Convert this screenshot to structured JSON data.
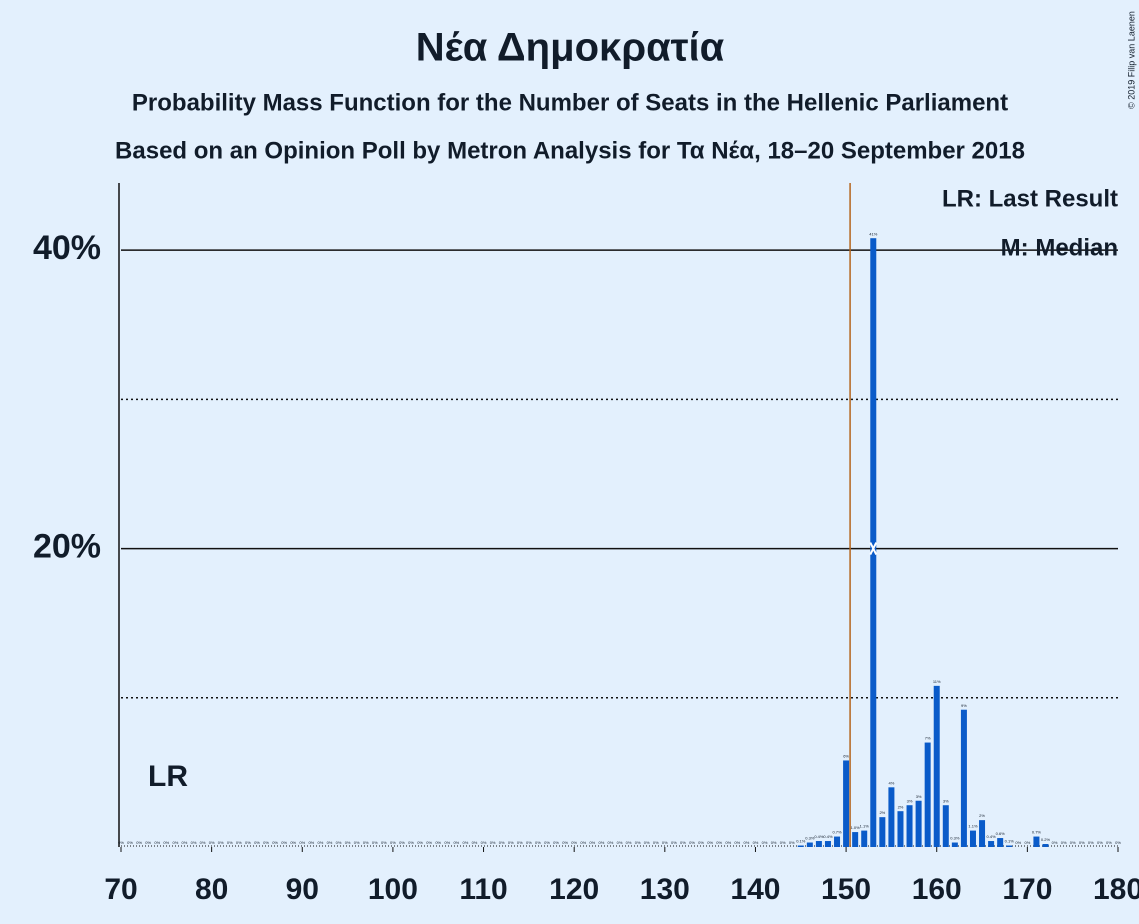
{
  "chart_data": {
    "type": "bar",
    "title": "Νέα Δημοκρατία",
    "subtitle": "Probability Mass Function for the Number of Seats in the Hellenic Parliament",
    "subtitle2": "Based on an Opinion Poll by Metron Analysis for Τα Νέα, 18–20 September 2018",
    "copyright": "© 2019 Filip van Laenen",
    "legend": [
      "LR: Last Result",
      "M: Median"
    ],
    "lr_label": "LR",
    "last_result": 150,
    "median": 153,
    "color": "#0a5bc9",
    "lr_color": "#b5651d",
    "x": [
      70,
      71,
      72,
      73,
      74,
      75,
      76,
      77,
      78,
      79,
      80,
      81,
      82,
      83,
      84,
      85,
      86,
      87,
      88,
      89,
      90,
      91,
      92,
      93,
      94,
      95,
      96,
      97,
      98,
      99,
      100,
      101,
      102,
      103,
      104,
      105,
      106,
      107,
      108,
      109,
      110,
      111,
      112,
      113,
      114,
      115,
      116,
      117,
      118,
      119,
      120,
      121,
      122,
      123,
      124,
      125,
      126,
      127,
      128,
      129,
      130,
      131,
      132,
      133,
      134,
      135,
      136,
      137,
      138,
      139,
      140,
      141,
      142,
      143,
      144,
      145,
      146,
      147,
      148,
      149,
      150,
      151,
      152,
      153,
      154,
      155,
      156,
      157,
      158,
      159,
      160,
      161,
      162,
      163,
      164,
      165,
      166,
      167,
      168,
      169,
      170,
      171,
      172,
      173,
      174,
      175,
      176,
      177,
      178,
      179,
      180
    ],
    "values": [
      0,
      0,
      0,
      0,
      0,
      0,
      0,
      0,
      0,
      0,
      0,
      0,
      0,
      0,
      0,
      0,
      0,
      0,
      0,
      0,
      0,
      0,
      0,
      0,
      0,
      0,
      0,
      0,
      0,
      0,
      0,
      0,
      0,
      0,
      0,
      0,
      0,
      0,
      0,
      0,
      0,
      0,
      0,
      0,
      0,
      0,
      0,
      0,
      0,
      0,
      0,
      0,
      0,
      0,
      0,
      0,
      0,
      0,
      0,
      0,
      0,
      0,
      0,
      0,
      0,
      0,
      0,
      0,
      0,
      0,
      0,
      0,
      0,
      0,
      0,
      0.1,
      0.3,
      0.4,
      0.4,
      0.7,
      5.8,
      1.0,
      1.1,
      40.8,
      2.0,
      4.0,
      2.4,
      2.8,
      3.1,
      7.0,
      10.8,
      2.8,
      0.3,
      9.2,
      1.1,
      1.8,
      0.4,
      0.6,
      0.1,
      0,
      0,
      0.7,
      0.2,
      0,
      0,
      0,
      0,
      0,
      0,
      0,
      0
    ],
    "value_labels": [
      "0%",
      "0%",
      "0%",
      "0%",
      "0%",
      "0%",
      "0%",
      "0%",
      "0%",
      "0%",
      "0%",
      "0%",
      "0%",
      "0%",
      "0%",
      "0%",
      "0%",
      "0%",
      "0%",
      "0%",
      "0%",
      "0%",
      "0%",
      "0%",
      "0%",
      "0%",
      "0%",
      "0%",
      "0%",
      "0%",
      "0%",
      "0%",
      "0%",
      "0%",
      "0%",
      "0%",
      "0%",
      "0%",
      "0%",
      "0%",
      "0%",
      "0%",
      "0%",
      "0%",
      "0%",
      "0%",
      "0%",
      "0%",
      "0%",
      "0%",
      "0%",
      "0%",
      "0%",
      "0%",
      "0%",
      "0%",
      "0%",
      "0%",
      "0%",
      "0%",
      "0%",
      "0%",
      "0%",
      "0%",
      "0%",
      "0%",
      "0%",
      "0%",
      "0%",
      "0%",
      "0%",
      "0%",
      "0%",
      "0%",
      "0%",
      "0.1%",
      "0.3%",
      "0.4%",
      "0.4%",
      "0.7%",
      "6%",
      "1.0%",
      "1.1%",
      "41%",
      "2%",
      "4%",
      "2%",
      "3%",
      "3%",
      "7%",
      "11%",
      "3%",
      "0.3%",
      "9%",
      "1.1%",
      "2%",
      "0.4%",
      "0.6%",
      "0.1%",
      "0%",
      "0%",
      "0.7%",
      "0.2%",
      "0%",
      "0%",
      "0%",
      "0%",
      "0%",
      "0%",
      "0%",
      "0%"
    ],
    "xlim": [
      70,
      180
    ],
    "xticks": [
      70,
      80,
      90,
      100,
      110,
      120,
      130,
      140,
      150,
      160,
      170,
      180
    ],
    "ylim": [
      0,
      44.5
    ],
    "yticks": [
      {
        "value": 20,
        "label": "20%"
      },
      {
        "value": 40,
        "label": "40%"
      }
    ],
    "minor_yticks": [
      10,
      30
    ]
  }
}
